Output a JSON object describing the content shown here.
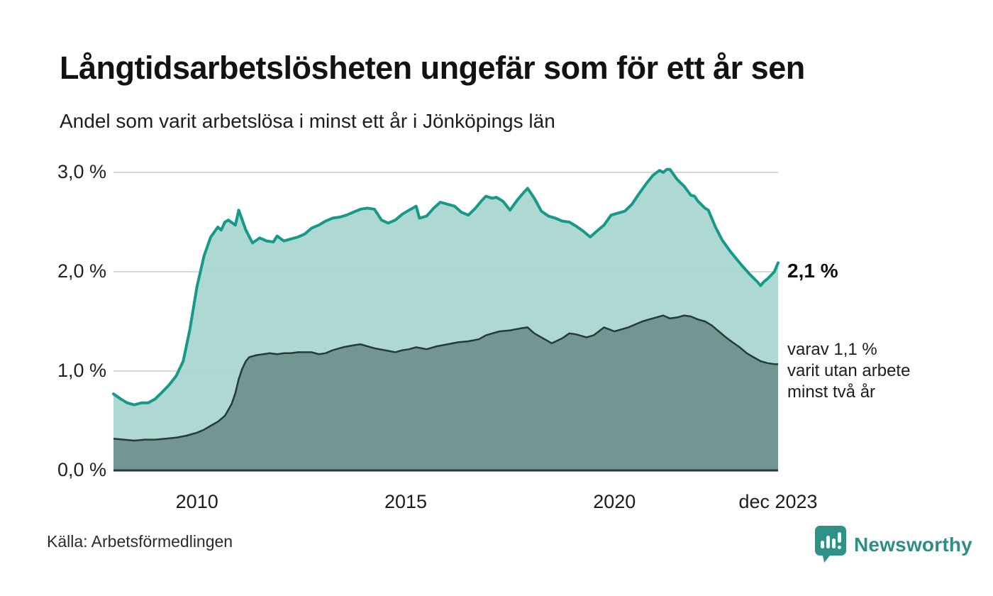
{
  "header": {
    "title": "Långtidsarbetslösheten ungefär som för ett år sen",
    "subtitle": "Andel som varit arbetslösa i minst ett år i Jönköpings län"
  },
  "chart_data": {
    "type": "area",
    "title": "Långtidsarbetslösheten ungefär som för ett år sen",
    "subtitle": "Andel som varit arbetslösa i minst ett år i Jönköpings län",
    "unit": "%",
    "xlim": [
      2008.0,
      2023.92
    ],
    "ylim": [
      0,
      3.2
    ],
    "grid": "horizontal",
    "grid_values": [
      1,
      2,
      3
    ],
    "y_ticks": [
      {
        "value": 0,
        "label": "0,0 %"
      },
      {
        "value": 1,
        "label": "1,0 %"
      },
      {
        "value": 2,
        "label": "2,0 %"
      },
      {
        "value": 3,
        "label": "3,0 %"
      }
    ],
    "x_ticks": [
      {
        "value": 2010,
        "label": "2010"
      },
      {
        "value": 2015,
        "label": "2015"
      },
      {
        "value": 2020,
        "label": "2020"
      },
      {
        "value": 2023.92,
        "label": "dec 2023"
      }
    ],
    "colors": {
      "line_total": "#17998a",
      "fill_total": "#a8d5cf",
      "line_two_year": "#263b36",
      "fill_two_year": "#6f948e",
      "gridline": "#d9d9d9",
      "baseline": "#263b36"
    },
    "series": [
      {
        "name": "Arbetslösa minst ett år",
        "final_value": "2,1 %",
        "points": [
          [
            2008.0,
            0.77
          ],
          [
            2008.17,
            0.72
          ],
          [
            2008.33,
            0.68
          ],
          [
            2008.5,
            0.66
          ],
          [
            2008.67,
            0.68
          ],
          [
            2008.83,
            0.68
          ],
          [
            2009.0,
            0.72
          ],
          [
            2009.17,
            0.79
          ],
          [
            2009.33,
            0.86
          ],
          [
            2009.5,
            0.95
          ],
          [
            2009.67,
            1.1
          ],
          [
            2009.83,
            1.42
          ],
          [
            2010.0,
            1.85
          ],
          [
            2010.17,
            2.16
          ],
          [
            2010.33,
            2.35
          ],
          [
            2010.5,
            2.45
          ],
          [
            2010.58,
            2.42
          ],
          [
            2010.67,
            2.5
          ],
          [
            2010.75,
            2.52
          ],
          [
            2010.92,
            2.47
          ],
          [
            2011.0,
            2.62
          ],
          [
            2011.17,
            2.42
          ],
          [
            2011.33,
            2.29
          ],
          [
            2011.5,
            2.34
          ],
          [
            2011.67,
            2.31
          ],
          [
            2011.83,
            2.3
          ],
          [
            2011.92,
            2.36
          ],
          [
            2012.08,
            2.31
          ],
          [
            2012.25,
            2.33
          ],
          [
            2012.42,
            2.35
          ],
          [
            2012.58,
            2.38
          ],
          [
            2012.75,
            2.44
          ],
          [
            2012.92,
            2.47
          ],
          [
            2013.08,
            2.51
          ],
          [
            2013.25,
            2.54
          ],
          [
            2013.42,
            2.55
          ],
          [
            2013.58,
            2.57
          ],
          [
            2013.75,
            2.6
          ],
          [
            2013.92,
            2.63
          ],
          [
            2014.08,
            2.64
          ],
          [
            2014.25,
            2.63
          ],
          [
            2014.42,
            2.52
          ],
          [
            2014.58,
            2.49
          ],
          [
            2014.75,
            2.52
          ],
          [
            2014.92,
            2.58
          ],
          [
            2015.08,
            2.62
          ],
          [
            2015.25,
            2.66
          ],
          [
            2015.33,
            2.54
          ],
          [
            2015.5,
            2.56
          ],
          [
            2015.67,
            2.64
          ],
          [
            2015.83,
            2.7
          ],
          [
            2016.0,
            2.68
          ],
          [
            2016.17,
            2.66
          ],
          [
            2016.33,
            2.6
          ],
          [
            2016.5,
            2.57
          ],
          [
            2016.67,
            2.64
          ],
          [
            2016.83,
            2.72
          ],
          [
            2016.92,
            2.76
          ],
          [
            2017.08,
            2.74
          ],
          [
            2017.17,
            2.75
          ],
          [
            2017.33,
            2.71
          ],
          [
            2017.5,
            2.62
          ],
          [
            2017.67,
            2.72
          ],
          [
            2017.83,
            2.8
          ],
          [
            2017.92,
            2.84
          ],
          [
            2018.08,
            2.74
          ],
          [
            2018.25,
            2.61
          ],
          [
            2018.42,
            2.56
          ],
          [
            2018.58,
            2.54
          ],
          [
            2018.75,
            2.51
          ],
          [
            2018.92,
            2.5
          ],
          [
            2019.08,
            2.46
          ],
          [
            2019.25,
            2.41
          ],
          [
            2019.42,
            2.35
          ],
          [
            2019.58,
            2.41
          ],
          [
            2019.75,
            2.47
          ],
          [
            2019.92,
            2.57
          ],
          [
            2020.08,
            2.59
          ],
          [
            2020.25,
            2.61
          ],
          [
            2020.42,
            2.68
          ],
          [
            2020.58,
            2.78
          ],
          [
            2020.75,
            2.88
          ],
          [
            2020.92,
            2.97
          ],
          [
            2021.08,
            3.02
          ],
          [
            2021.17,
            3.0
          ],
          [
            2021.25,
            3.03
          ],
          [
            2021.33,
            3.03
          ],
          [
            2021.5,
            2.93
          ],
          [
            2021.67,
            2.86
          ],
          [
            2021.83,
            2.77
          ],
          [
            2021.92,
            2.76
          ],
          [
            2022.0,
            2.71
          ],
          [
            2022.17,
            2.64
          ],
          [
            2022.25,
            2.62
          ],
          [
            2022.42,
            2.45
          ],
          [
            2022.58,
            2.32
          ],
          [
            2022.75,
            2.22
          ],
          [
            2022.92,
            2.13
          ],
          [
            2023.08,
            2.05
          ],
          [
            2023.25,
            1.97
          ],
          [
            2023.42,
            1.9
          ],
          [
            2023.5,
            1.86
          ],
          [
            2023.58,
            1.9
          ],
          [
            2023.67,
            1.93
          ],
          [
            2023.83,
            2.0
          ],
          [
            2023.92,
            2.09
          ]
        ]
      },
      {
        "name": "Utan arbete minst två år",
        "final_value": "1,1 %",
        "points": [
          [
            2008.0,
            0.32
          ],
          [
            2008.25,
            0.31
          ],
          [
            2008.5,
            0.3
          ],
          [
            2008.75,
            0.31
          ],
          [
            2009.0,
            0.31
          ],
          [
            2009.25,
            0.32
          ],
          [
            2009.5,
            0.33
          ],
          [
            2009.75,
            0.35
          ],
          [
            2010.0,
            0.38
          ],
          [
            2010.17,
            0.41
          ],
          [
            2010.33,
            0.45
          ],
          [
            2010.5,
            0.49
          ],
          [
            2010.67,
            0.55
          ],
          [
            2010.83,
            0.67
          ],
          [
            2010.92,
            0.78
          ],
          [
            2011.0,
            0.92
          ],
          [
            2011.08,
            1.02
          ],
          [
            2011.17,
            1.1
          ],
          [
            2011.25,
            1.14
          ],
          [
            2011.42,
            1.16
          ],
          [
            2011.58,
            1.17
          ],
          [
            2011.75,
            1.18
          ],
          [
            2011.92,
            1.17
          ],
          [
            2012.08,
            1.18
          ],
          [
            2012.25,
            1.18
          ],
          [
            2012.42,
            1.19
          ],
          [
            2012.58,
            1.19
          ],
          [
            2012.75,
            1.19
          ],
          [
            2012.92,
            1.17
          ],
          [
            2013.08,
            1.18
          ],
          [
            2013.25,
            1.21
          ],
          [
            2013.5,
            1.24
          ],
          [
            2013.75,
            1.26
          ],
          [
            2013.92,
            1.27
          ],
          [
            2014.08,
            1.25
          ],
          [
            2014.25,
            1.23
          ],
          [
            2014.5,
            1.21
          ],
          [
            2014.75,
            1.19
          ],
          [
            2014.92,
            1.21
          ],
          [
            2015.08,
            1.22
          ],
          [
            2015.25,
            1.24
          ],
          [
            2015.5,
            1.22
          ],
          [
            2015.75,
            1.25
          ],
          [
            2016.0,
            1.27
          ],
          [
            2016.25,
            1.29
          ],
          [
            2016.5,
            1.3
          ],
          [
            2016.75,
            1.32
          ],
          [
            2016.92,
            1.36
          ],
          [
            2017.08,
            1.38
          ],
          [
            2017.25,
            1.4
          ],
          [
            2017.5,
            1.41
          ],
          [
            2017.75,
            1.43
          ],
          [
            2017.92,
            1.44
          ],
          [
            2018.08,
            1.38
          ],
          [
            2018.33,
            1.32
          ],
          [
            2018.5,
            1.28
          ],
          [
            2018.75,
            1.33
          ],
          [
            2018.92,
            1.38
          ],
          [
            2019.08,
            1.37
          ],
          [
            2019.33,
            1.34
          ],
          [
            2019.5,
            1.36
          ],
          [
            2019.75,
            1.44
          ],
          [
            2020.0,
            1.4
          ],
          [
            2020.17,
            1.42
          ],
          [
            2020.33,
            1.44
          ],
          [
            2020.5,
            1.47
          ],
          [
            2020.67,
            1.5
          ],
          [
            2020.83,
            1.52
          ],
          [
            2021.0,
            1.54
          ],
          [
            2021.17,
            1.56
          ],
          [
            2021.33,
            1.53
          ],
          [
            2021.5,
            1.54
          ],
          [
            2021.67,
            1.56
          ],
          [
            2021.83,
            1.55
          ],
          [
            2022.0,
            1.52
          ],
          [
            2022.17,
            1.5
          ],
          [
            2022.33,
            1.46
          ],
          [
            2022.5,
            1.4
          ],
          [
            2022.67,
            1.34
          ],
          [
            2022.83,
            1.29
          ],
          [
            2023.0,
            1.24
          ],
          [
            2023.17,
            1.18
          ],
          [
            2023.33,
            1.14
          ],
          [
            2023.5,
            1.1
          ],
          [
            2023.67,
            1.08
          ],
          [
            2023.83,
            1.07
          ],
          [
            2023.92,
            1.07
          ]
        ]
      }
    ],
    "annotations": {
      "total_label": "2,1 %",
      "subset_lines": [
        "varav 1,1 %",
        "varit utan arbete",
        "minst två år"
      ]
    }
  },
  "footer": {
    "source": "Källa: Arbetsförmedlingen",
    "logo_text": "Newsworthy"
  }
}
